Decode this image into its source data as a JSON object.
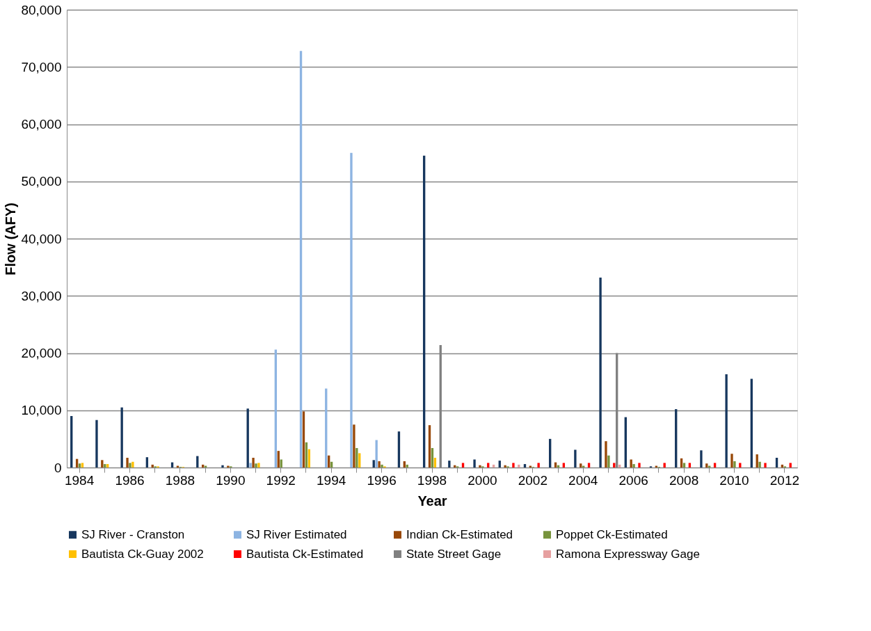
{
  "chart_data": {
    "type": "bar",
    "xlabel": "Year",
    "ylabel": "Flow (AFY)",
    "categories": [
      "1984",
      null,
      "1986",
      null,
      "1988",
      null,
      "1990",
      null,
      "1992",
      null,
      "1994",
      null,
      "1996",
      null,
      "1998",
      null,
      "2000",
      null,
      "2002",
      null,
      "2004",
      null,
      "2006",
      null,
      "2008",
      null,
      "2010",
      null,
      "2012"
    ],
    "series": [
      {
        "name": "SJ River - Cranston",
        "color": "#17375e",
        "values": [
          9000,
          8300,
          10500,
          1800,
          900,
          2000,
          400,
          10300,
          null,
          null,
          null,
          null,
          1300,
          6300,
          54500,
          1200,
          1400,
          1200,
          600,
          5000,
          3100,
          33200,
          8800,
          200,
          10200,
          3000,
          16300,
          15500,
          1700
        ]
      },
      {
        "name": "SJ River Estimated",
        "color": "#8db4e2",
        "values": [
          null,
          null,
          null,
          null,
          null,
          null,
          null,
          800,
          20600,
          72800,
          13800,
          55000,
          4800,
          null,
          null,
          null,
          null,
          null,
          null,
          null,
          null,
          null,
          null,
          null,
          null,
          null,
          null,
          null,
          null
        ]
      },
      {
        "name": "Indian Ck-Estimated",
        "color": "#984807",
        "values": [
          1500,
          1300,
          1700,
          500,
          300,
          500,
          300,
          1700,
          2900,
          9800,
          2100,
          7500,
          1100,
          1100,
          7400,
          400,
          400,
          400,
          300,
          900,
          700,
          4600,
          1400,
          300,
          1600,
          700,
          2400,
          2300,
          500
        ]
      },
      {
        "name": "Poppet Ck-Estimated",
        "color": "#77933c",
        "values": [
          700,
          600,
          800,
          200,
          100,
          300,
          200,
          700,
          1400,
          4400,
          1000,
          3400,
          500,
          500,
          3400,
          200,
          200,
          200,
          100,
          400,
          300,
          2100,
          600,
          100,
          800,
          300,
          1100,
          1000,
          200
        ]
      },
      {
        "name": "Bautista Ck-Guay 2002",
        "color": "#ffc000",
        "values": [
          800,
          600,
          1000,
          200,
          100,
          null,
          null,
          800,
          null,
          3200,
          null,
          2500,
          200,
          null,
          1700,
          null,
          null,
          null,
          null,
          null,
          null,
          null,
          null,
          null,
          null,
          null,
          null,
          null,
          null
        ]
      },
      {
        "name": "Bautista Ck-Estimated",
        "color": "#ff0000",
        "values": [
          null,
          null,
          null,
          null,
          null,
          null,
          null,
          null,
          null,
          null,
          null,
          null,
          null,
          null,
          null,
          800,
          800,
          800,
          800,
          800,
          800,
          800,
          800,
          800,
          800,
          800,
          800,
          800,
          800
        ]
      },
      {
        "name": "State Street Gage",
        "color": "#808080",
        "values": [
          null,
          null,
          null,
          null,
          null,
          null,
          null,
          null,
          null,
          null,
          null,
          null,
          null,
          null,
          21400,
          null,
          null,
          null,
          null,
          null,
          null,
          20000,
          null,
          null,
          null,
          null,
          null,
          null,
          null
        ]
      },
      {
        "name": "Ramona Expressway Gage",
        "color": "#e6a0a0",
        "values": [
          null,
          null,
          null,
          null,
          null,
          null,
          null,
          null,
          null,
          null,
          null,
          null,
          null,
          null,
          null,
          null,
          500,
          500,
          null,
          null,
          null,
          500,
          null,
          null,
          null,
          null,
          null,
          null,
          null
        ]
      }
    ],
    "ylim": [
      0,
      80000
    ],
    "yticks": [
      {
        "value": 0,
        "label": "0"
      },
      {
        "value": 10000,
        "label": "10,000"
      },
      {
        "value": 20000,
        "label": "20,000"
      },
      {
        "value": 30000,
        "label": "30,000"
      },
      {
        "value": 40000,
        "label": "40,000"
      },
      {
        "value": 50000,
        "label": "50,000"
      },
      {
        "value": 60000,
        "label": "60,000"
      },
      {
        "value": 70000,
        "label": "70,000"
      },
      {
        "value": 80000,
        "label": "80,000"
      }
    ],
    "grid": "y",
    "legend": "bottom"
  }
}
